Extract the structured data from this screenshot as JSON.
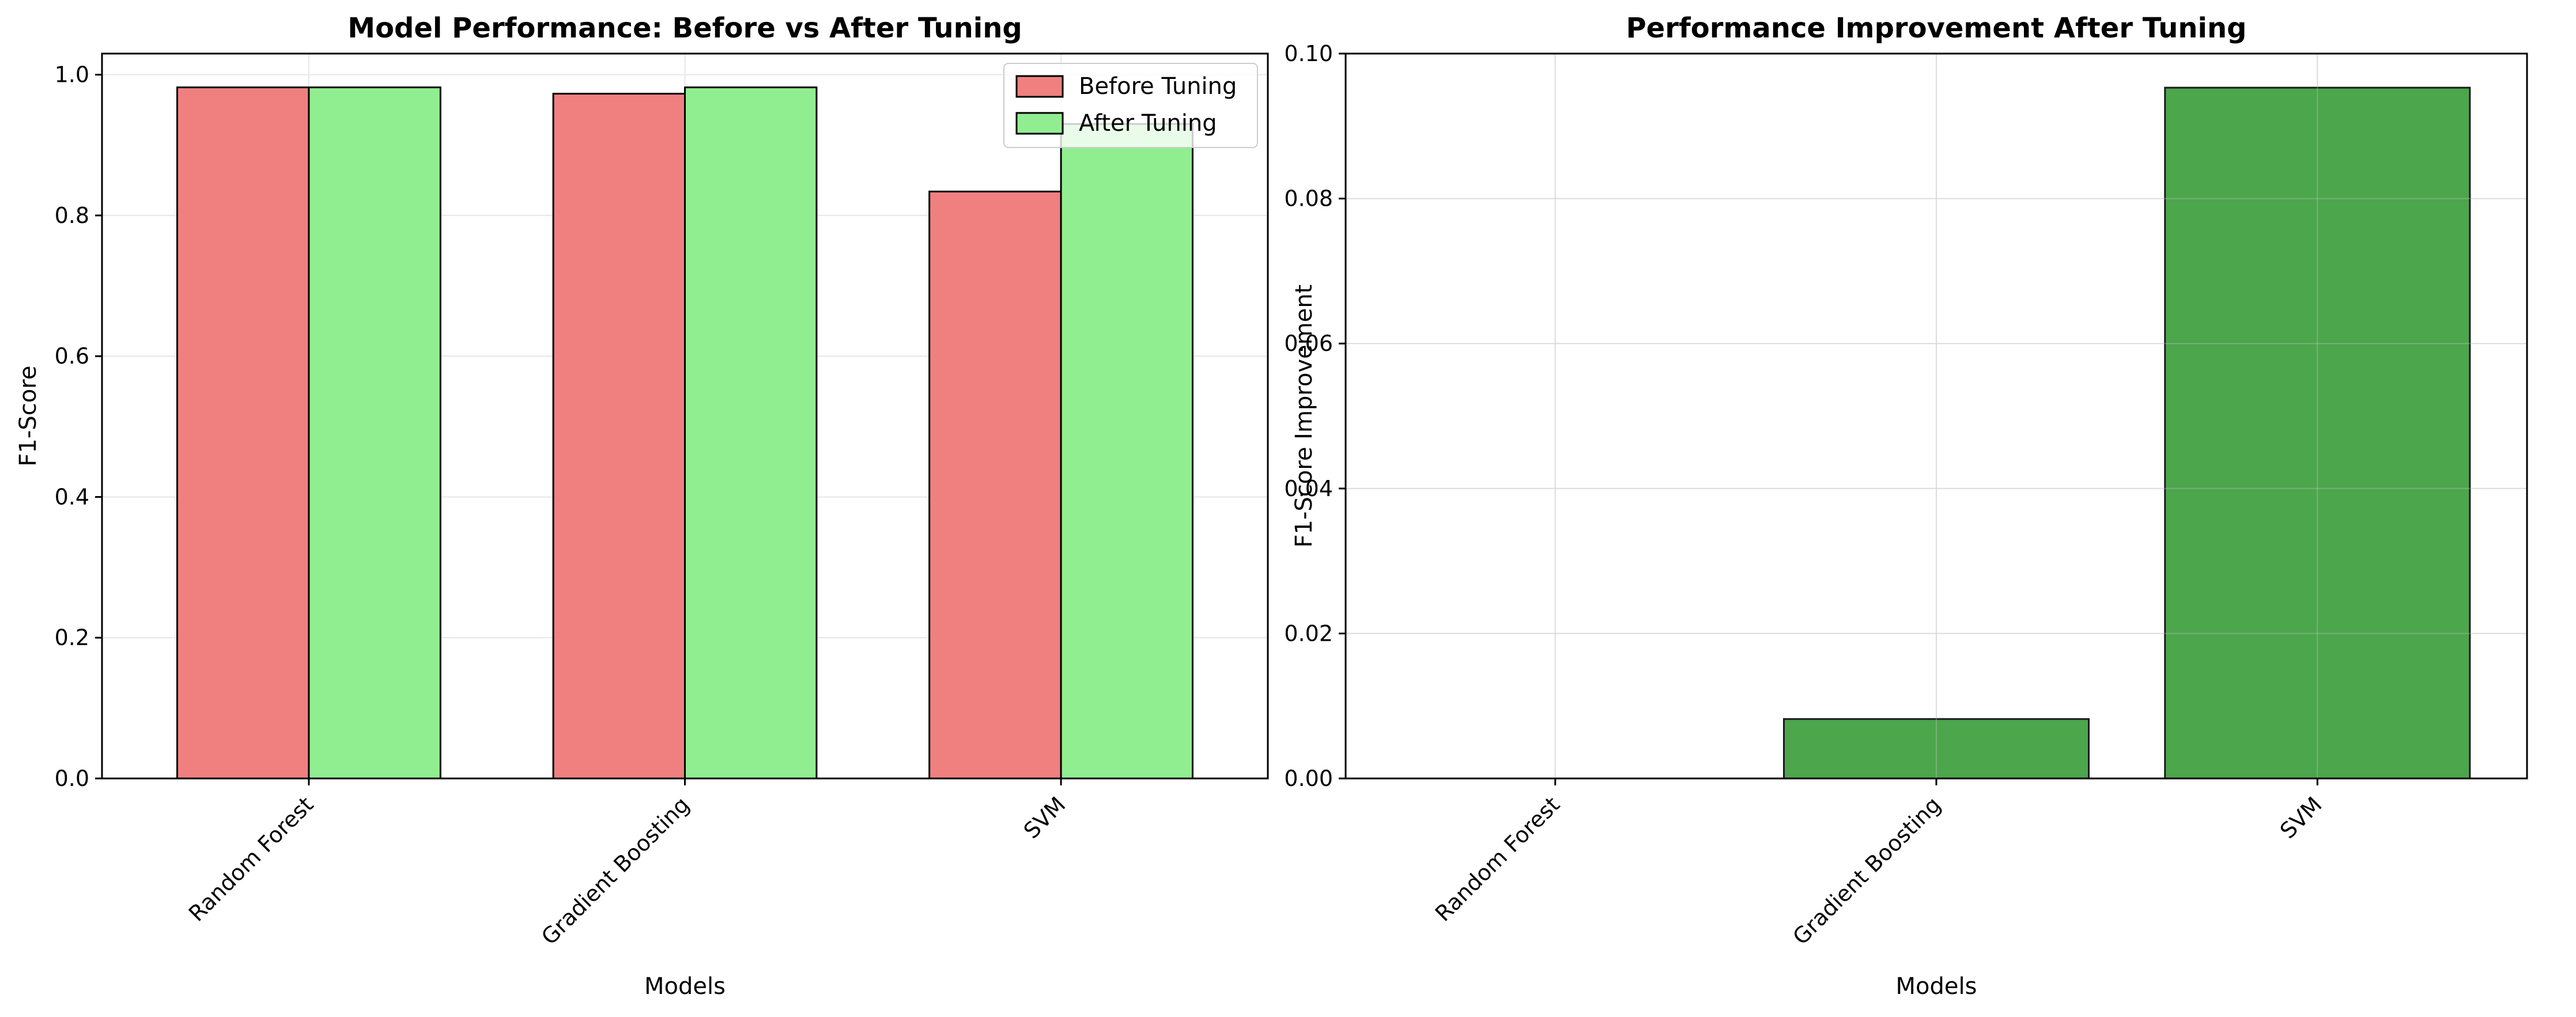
{
  "chart_data": [
    {
      "type": "bar",
      "title": "Model Performance: Before vs After Tuning",
      "xlabel": "Models",
      "ylabel": "F1-Score",
      "categories": [
        "Random Forest",
        "Gradient Boosting",
        "SVM"
      ],
      "series": [
        {
          "name": "Before Tuning",
          "values": [
            0.982,
            0.973,
            0.834
          ],
          "color": "#f08080"
        },
        {
          "name": "After Tuning",
          "values": [
            0.982,
            0.982,
            0.93
          ],
          "color": "#90ee90"
        }
      ],
      "ylim": [
        0,
        1.03
      ],
      "yticks": [
        0.0,
        0.2,
        0.4,
        0.6,
        0.8,
        1.0
      ],
      "ytick_labels": [
        "0.0",
        "0.2",
        "0.4",
        "0.6",
        "0.8",
        "1.0"
      ],
      "grid": true,
      "legend_position": "top-right"
    },
    {
      "type": "bar",
      "title": "Performance Improvement After Tuning",
      "xlabel": "Models",
      "ylabel": "F1-Score Improvement",
      "categories": [
        "Random Forest",
        "Gradient Boosting",
        "SVM"
      ],
      "values": [
        0.0,
        0.0082,
        0.0953
      ],
      "color": "#4ca64c",
      "ylim": [
        0,
        0.1
      ],
      "yticks": [
        0.0,
        0.02,
        0.04,
        0.06,
        0.08,
        0.1
      ],
      "ytick_labels": [
        "0.00",
        "0.02",
        "0.04",
        "0.06",
        "0.08",
        "0.10"
      ],
      "grid": true
    }
  ]
}
